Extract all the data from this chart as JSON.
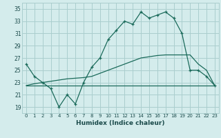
{
  "title": "",
  "xlabel": "Humidex (Indice chaleur)",
  "ylabel": "",
  "bg_color": "#d4ecec",
  "grid_color": "#aacece",
  "line_color": "#1a6a5a",
  "xlim": [
    -0.5,
    23.5
  ],
  "ylim": [
    18.0,
    36.0
  ],
  "yticks": [
    19,
    21,
    23,
    25,
    27,
    29,
    31,
    33,
    35
  ],
  "xticks": [
    0,
    1,
    2,
    3,
    4,
    5,
    6,
    7,
    8,
    9,
    10,
    11,
    12,
    13,
    14,
    15,
    16,
    17,
    18,
    19,
    20,
    21,
    22,
    23
  ],
  "line1_x": [
    0,
    1,
    2,
    3,
    4,
    5,
    6,
    7,
    8,
    9,
    10,
    11,
    12,
    13,
    14,
    15,
    16,
    17,
    18,
    19,
    20,
    21,
    22,
    23
  ],
  "line1_y": [
    26.0,
    24.0,
    23.0,
    22.0,
    19.0,
    21.0,
    19.5,
    23.0,
    25.5,
    27.0,
    30.0,
    31.5,
    33.0,
    32.5,
    34.5,
    33.5,
    34.0,
    34.5,
    33.5,
    31.0,
    25.0,
    25.0,
    24.0,
    22.5
  ],
  "line2_x": [
    0,
    1,
    2,
    3,
    4,
    5,
    6,
    7,
    8,
    9,
    10,
    11,
    12,
    13,
    14,
    15,
    16,
    17,
    18,
    19,
    20,
    21,
    22,
    23
  ],
  "line2_y": [
    22.5,
    22.5,
    22.5,
    22.5,
    22.5,
    22.5,
    22.5,
    22.5,
    22.5,
    22.5,
    22.5,
    22.5,
    22.5,
    22.5,
    22.5,
    22.5,
    22.5,
    22.5,
    22.5,
    22.5,
    22.5,
    22.5,
    22.5,
    22.5
  ],
  "line3_x": [
    0,
    1,
    2,
    3,
    4,
    5,
    6,
    7,
    8,
    9,
    10,
    11,
    12,
    13,
    14,
    15,
    16,
    17,
    18,
    19,
    20,
    21,
    22,
    23
  ],
  "line3_y": [
    22.5,
    22.8,
    23.0,
    23.2,
    23.4,
    23.6,
    23.7,
    23.8,
    24.0,
    24.5,
    25.0,
    25.5,
    26.0,
    26.5,
    27.0,
    27.2,
    27.4,
    27.5,
    27.5,
    27.5,
    27.5,
    26.0,
    25.0,
    22.5
  ]
}
